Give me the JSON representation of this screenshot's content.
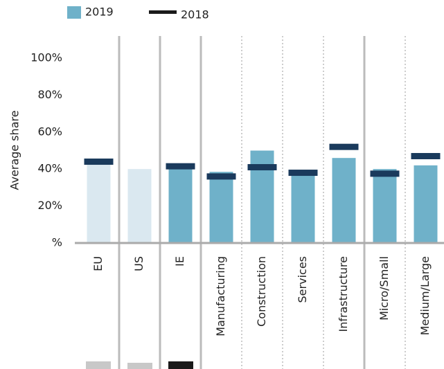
{
  "chart_data": {
    "type": "bar",
    "y_label": "Average share",
    "categories": [
      "EU",
      "US",
      "IE",
      "Manufacturing",
      "Construction",
      "Services",
      "Infrastructure",
      "Micro/Small",
      "Medium/Large"
    ],
    "series": [
      {
        "name": "2019",
        "color": "#6fb1c9",
        "colors": [
          "#dae8f0",
          "#dae8f0",
          "#6fb1c9",
          "#6fb1c9",
          "#6fb1c9",
          "#6fb1c9",
          "#6fb1c9",
          "#6fb1c9",
          "#6fb1c9"
        ],
        "values": [
          43,
          40,
          41,
          38.5,
          50,
          38,
          46,
          40,
          42
        ]
      },
      {
        "name": "2018",
        "color": "#1a3a5c",
        "legend_color": "#1a1a1a",
        "values": [
          44,
          null,
          41.5,
          36,
          41,
          38,
          52,
          37.5,
          47
        ]
      }
    ],
    "ylim": [
      0,
      100
    ],
    "yticks": [
      {
        "value": 0,
        "label": "%"
      },
      {
        "value": 20,
        "label": "20%"
      },
      {
        "value": 40,
        "label": "40%"
      },
      {
        "value": 60,
        "label": "60%"
      },
      {
        "value": 80,
        "label": "80%"
      },
      {
        "value": 100,
        "label": "100%"
      }
    ]
  }
}
